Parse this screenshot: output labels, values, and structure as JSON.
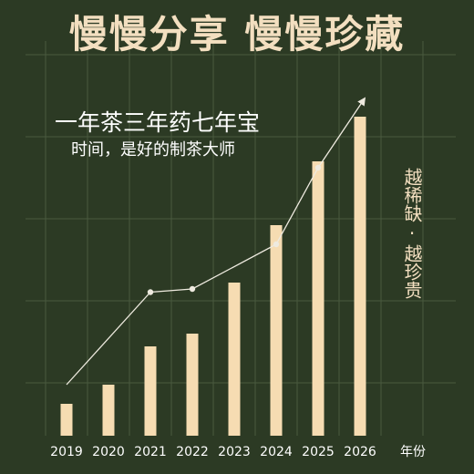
{
  "header": {
    "title": "慢慢分享 慢慢珍藏",
    "tagline": "一年茶三年药七年宝",
    "subline": "时间，是好的制茶大师",
    "side_text": "越稀缺·越珍贵"
  },
  "colors": {
    "background": "#2c3a24",
    "bar": "#f6dcb2",
    "title": "#f3dfc0",
    "grid": "#4a5a3e",
    "trend": "#eeeadf"
  },
  "chart_data": {
    "type": "bar",
    "categories": [
      "2019",
      "2020",
      "2021",
      "2022",
      "2023",
      "2024",
      "2025",
      "2026"
    ],
    "values": [
      10,
      16,
      28,
      32,
      48,
      66,
      86,
      100
    ],
    "trend_values": [
      16,
      null,
      45,
      46,
      null,
      60,
      84,
      null
    ],
    "xlabel": "年份",
    "ylabel": "",
    "ylim": [
      0,
      100
    ],
    "grid": true
  }
}
